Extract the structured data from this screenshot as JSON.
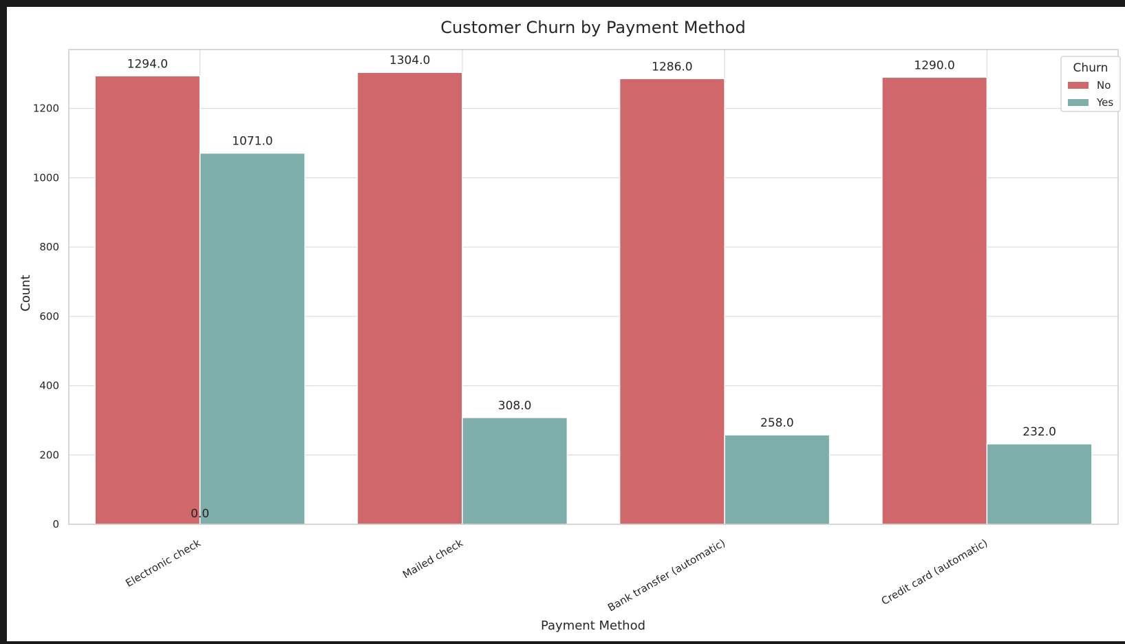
{
  "chart_data": {
    "type": "bar",
    "title": "Customer Churn by Payment Method",
    "xlabel": "Payment Method",
    "ylabel": "Count",
    "categories": [
      "Electronic check",
      "Mailed check",
      "Bank transfer (automatic)",
      "Credit card (automatic)"
    ],
    "series": [
      {
        "name": "No",
        "color": "#d0676a",
        "values": [
          1294.0,
          1304.0,
          1286.0,
          1290.0
        ]
      },
      {
        "name": "Yes",
        "color": "#7eaeaa",
        "values": [
          1071.0,
          308.0,
          258.0,
          232.0
        ]
      }
    ],
    "bar_labels": [
      [
        "1294.0",
        "1304.0",
        "1286.0",
        "1290.0"
      ],
      [
        "1071.0",
        "308.0",
        "258.0",
        "232.0"
      ]
    ],
    "extra_label": "0.0",
    "ylim": [
      0,
      1370
    ],
    "yticks": [
      0,
      200,
      400,
      600,
      800,
      1000,
      1200
    ],
    "grid": true,
    "legend": {
      "title": "Churn",
      "placement": "top-right"
    }
  }
}
